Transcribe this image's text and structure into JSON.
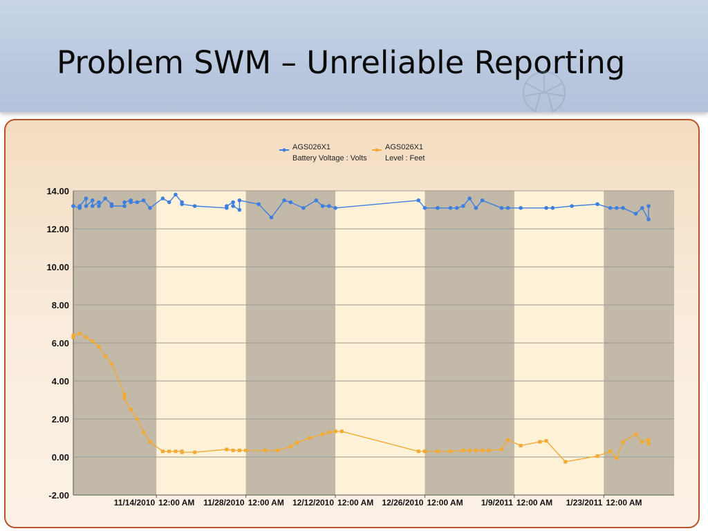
{
  "slide": {
    "title": "Problem SWM – Unreliable Reporting"
  },
  "chart_data": {
    "type": "line",
    "x_type": "date",
    "xlim": [
      "2010-11-01",
      "2011-02-03"
    ],
    "ylim": [
      -2,
      14
    ],
    "y_ticks": [
      "14.00",
      "12.00",
      "10.00",
      "8.00",
      "6.00",
      "4.00",
      "2.00",
      "0.00",
      "-2.00"
    ],
    "x_ticks": [
      {
        "date": "2010-11-14",
        "label": "11/14/2010  12:00 AM"
      },
      {
        "date": "2010-11-28",
        "label": "11/28/2010  12:00 AM"
      },
      {
        "date": "2010-12-12",
        "label": "12/12/2010  12:00 AM"
      },
      {
        "date": "2010-12-26",
        "label": "12/26/2010  12:00 AM"
      },
      {
        "date": "2011-01-09",
        "label": "1/9/2011  12:00 AM"
      },
      {
        "date": "2011-01-23",
        "label": "1/23/2011  12:00 AM"
      }
    ],
    "shaded_bands": [
      [
        "2010-11-01",
        "2010-11-14"
      ],
      [
        "2010-11-28",
        "2010-12-12"
      ],
      [
        "2010-12-26",
        "2011-01-09"
      ],
      [
        "2011-01-23",
        "2011-02-03"
      ]
    ],
    "grid": true,
    "legend_position": "top-center",
    "series": [
      {
        "name": "AGS026X1",
        "subtitle": "Battery Voltage : Volts",
        "color": "#3d7fe0",
        "marker": "circle",
        "points": [
          [
            "2010-11-01",
            13.2
          ],
          [
            "2010-11-01",
            13.2
          ],
          [
            "2010-11-02",
            13.1
          ],
          [
            "2010-11-02",
            13.2
          ],
          [
            "2010-11-03",
            13.6
          ],
          [
            "2010-11-03",
            13.2
          ],
          [
            "2010-11-04",
            13.5
          ],
          [
            "2010-11-04",
            13.2
          ],
          [
            "2010-11-05",
            13.4
          ],
          [
            "2010-11-05",
            13.2
          ],
          [
            "2010-11-06",
            13.6
          ],
          [
            "2010-11-07",
            13.3
          ],
          [
            "2010-11-07",
            13.2
          ],
          [
            "2010-11-09",
            13.2
          ],
          [
            "2010-11-09",
            13.4
          ],
          [
            "2010-11-10",
            13.5
          ],
          [
            "2010-11-10",
            13.4
          ],
          [
            "2010-11-11",
            13.4
          ],
          [
            "2010-11-12",
            13.5
          ],
          [
            "2010-11-13",
            13.1
          ],
          [
            "2010-11-15",
            13.6
          ],
          [
            "2010-11-16",
            13.4
          ],
          [
            "2010-11-17",
            13.8
          ],
          [
            "2010-11-18",
            13.4
          ],
          [
            "2010-11-18",
            13.3
          ],
          [
            "2010-11-20",
            13.2
          ],
          [
            "2010-11-25",
            13.1
          ],
          [
            "2010-11-25",
            13.2
          ],
          [
            "2010-11-26",
            13.4
          ],
          [
            "2010-11-26",
            13.2
          ],
          [
            "2010-11-27",
            13.0
          ],
          [
            "2010-11-27",
            13.5
          ],
          [
            "2010-11-30",
            13.3
          ],
          [
            "2010-12-02",
            12.6
          ],
          [
            "2010-12-04",
            13.5
          ],
          [
            "2010-12-05",
            13.4
          ],
          [
            "2010-12-07",
            13.1
          ],
          [
            "2010-12-09",
            13.5
          ],
          [
            "2010-12-10",
            13.2
          ],
          [
            "2010-12-11",
            13.2
          ],
          [
            "2010-12-12",
            13.1
          ],
          [
            "2010-12-25",
            13.5
          ],
          [
            "2010-12-26",
            13.1
          ],
          [
            "2010-12-28",
            13.1
          ],
          [
            "2010-12-28",
            13.1
          ],
          [
            "2010-12-30",
            13.1
          ],
          [
            "2010-12-31",
            13.1
          ],
          [
            "2011-01-01",
            13.2
          ],
          [
            "2011-01-02",
            13.6
          ],
          [
            "2011-01-03",
            13.1
          ],
          [
            "2011-01-04",
            13.5
          ],
          [
            "2011-01-07",
            13.1
          ],
          [
            "2011-01-08",
            13.1
          ],
          [
            "2011-01-10",
            13.1
          ],
          [
            "2011-01-14",
            13.1
          ],
          [
            "2011-01-15",
            13.1
          ],
          [
            "2011-01-18",
            13.2
          ],
          [
            "2011-01-22",
            13.3
          ],
          [
            "2011-01-24",
            13.1
          ],
          [
            "2011-01-25",
            13.1
          ],
          [
            "2011-01-26",
            13.1
          ],
          [
            "2011-01-28",
            12.8
          ],
          [
            "2011-01-29",
            13.1
          ],
          [
            "2011-01-30",
            12.5
          ],
          [
            "2011-01-30",
            13.2
          ]
        ]
      },
      {
        "name": "AGS026X1",
        "subtitle": "Level : Feet",
        "color": "#f2aa33",
        "marker": "square",
        "points": [
          [
            "2010-11-01",
            6.3
          ],
          [
            "2010-11-01",
            6.4
          ],
          [
            "2010-11-02",
            6.5
          ],
          [
            "2010-11-03",
            6.3
          ],
          [
            "2010-11-04",
            6.1
          ],
          [
            "2010-11-05",
            5.8
          ],
          [
            "2010-11-06",
            5.3
          ],
          [
            "2010-11-07",
            4.9
          ],
          [
            "2010-11-09",
            3.3
          ],
          [
            "2010-11-09",
            3.1
          ],
          [
            "2010-11-10",
            2.5
          ],
          [
            "2010-11-11",
            2.0
          ],
          [
            "2010-11-12",
            1.3
          ],
          [
            "2010-11-13",
            0.8
          ],
          [
            "2010-11-15",
            0.3
          ],
          [
            "2010-11-16",
            0.3
          ],
          [
            "2010-11-17",
            0.3
          ],
          [
            "2010-11-18",
            0.3
          ],
          [
            "2010-11-18",
            0.25
          ],
          [
            "2010-11-20",
            0.25
          ],
          [
            "2010-11-25",
            0.4
          ],
          [
            "2010-11-26",
            0.35
          ],
          [
            "2010-11-27",
            0.35
          ],
          [
            "2010-11-28",
            0.35
          ],
          [
            "2010-12-01",
            0.35
          ],
          [
            "2010-12-03",
            0.35
          ],
          [
            "2010-12-05",
            0.55
          ],
          [
            "2010-12-06",
            0.75
          ],
          [
            "2010-12-08",
            1.0
          ],
          [
            "2010-12-10",
            1.2
          ],
          [
            "2010-12-11",
            1.3
          ],
          [
            "2010-12-12",
            1.35
          ],
          [
            "2010-12-13",
            1.35
          ],
          [
            "2010-12-25",
            0.3
          ],
          [
            "2010-12-26",
            0.3
          ],
          [
            "2010-12-28",
            0.3
          ],
          [
            "2010-12-30",
            0.3
          ],
          [
            "2011-01-01",
            0.35
          ],
          [
            "2011-01-02",
            0.35
          ],
          [
            "2011-01-03",
            0.35
          ],
          [
            "2011-01-04",
            0.35
          ],
          [
            "2011-01-05",
            0.35
          ],
          [
            "2011-01-07",
            0.4
          ],
          [
            "2011-01-08",
            0.9
          ],
          [
            "2011-01-10",
            0.6
          ],
          [
            "2011-01-13",
            0.8
          ],
          [
            "2011-01-14",
            0.85
          ],
          [
            "2011-01-17",
            -0.25
          ],
          [
            "2011-01-22",
            0.05
          ],
          [
            "2011-01-24",
            0.3
          ],
          [
            "2011-01-25",
            -0.05
          ],
          [
            "2011-01-26",
            0.8
          ],
          [
            "2011-01-28",
            1.2
          ],
          [
            "2011-01-29",
            0.8
          ],
          [
            "2011-01-30",
            0.9
          ],
          [
            "2011-01-30",
            0.7
          ]
        ]
      }
    ]
  }
}
